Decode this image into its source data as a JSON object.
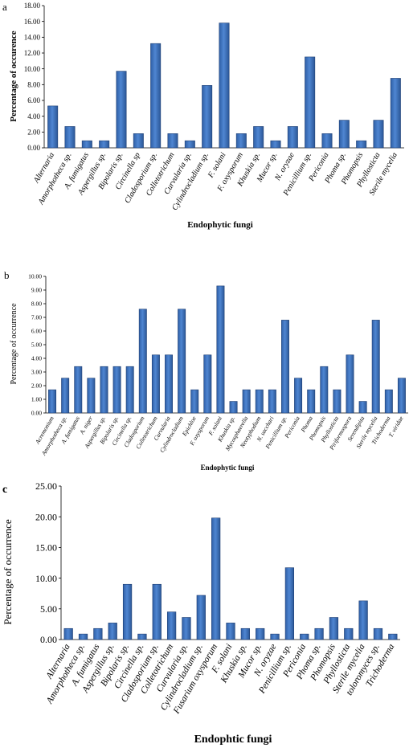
{
  "chart_data": [
    {
      "type": "bar",
      "panel_label": "a",
      "xlabel": "Endophytic fungi",
      "ylabel": "Percentage of occurence",
      "ylim": [
        0,
        18
      ],
      "yticks": [
        "0.00",
        "2.00",
        "4.00",
        "6.00",
        "8.00",
        "10.00",
        "12.00",
        "14.00",
        "16.00",
        "18.00"
      ],
      "categories": [
        "Alternaria",
        "Amorphotheca sp.",
        "A. fumigatus",
        "Aspergillus sp.",
        "Bipolaris sp.",
        "Circinella sp",
        "Cladosporium sp.",
        "Colletotrichum",
        "Curvularia sp.",
        "Cylindrocladium sp.",
        "F. solani",
        "F. oxysporum",
        "Khuskia sp.",
        "Mucor sp.",
        "N. oryzae",
        "Penicillium sp.",
        "Periconia",
        "Phoma sp.",
        "Phomopsis",
        "Phyllosticta",
        "Sterile mycelia"
      ],
      "values": [
        5.3,
        2.7,
        0.9,
        0.9,
        9.7,
        1.8,
        13.2,
        1.8,
        0.9,
        7.9,
        15.8,
        1.8,
        2.7,
        0.9,
        2.7,
        11.5,
        1.8,
        3.5,
        0.9,
        3.5,
        8.8
      ]
    },
    {
      "type": "bar",
      "panel_label": "b",
      "xlabel": "Endophytic fungi",
      "ylabel": "Percentage of occurrence",
      "ylim": [
        0,
        10
      ],
      "yticks": [
        "0.00",
        "1.00",
        "2.00",
        "3.00",
        "4.00",
        "5.00",
        "6.00",
        "7.00",
        "8.00",
        "9.00",
        "10.00"
      ],
      "categories": [
        "Acremonium",
        "Amorphotheca sp.",
        "A. fumigatus",
        "A. niger",
        "Aspergillus sp.",
        "Bipolaris sp.",
        "Circinella sp.",
        "Cladosporium",
        "Colletotrichum",
        "Curvularia",
        "Cylindrocladium",
        "Epichloe",
        "F. oxysporum",
        "F. solani",
        "Khuskia sp.",
        "Mycosphaerella",
        "Neotyphodium",
        "N. sacchari",
        "Penicillium sp.",
        "Periconia",
        "Phoma",
        "Phomopsis",
        "Phyllosticta",
        "Piriformospora",
        "Serendipita",
        "Sterile mycelia",
        "Trichoderma",
        "T. viridae"
      ],
      "values": [
        1.7,
        2.55,
        3.4,
        2.55,
        3.4,
        3.4,
        3.4,
        7.6,
        4.25,
        4.25,
        7.6,
        1.7,
        4.25,
        9.3,
        0.85,
        1.7,
        1.7,
        1.7,
        6.8,
        2.55,
        1.7,
        3.4,
        1.7,
        4.25,
        0.85,
        6.8,
        1.7,
        2.55
      ]
    },
    {
      "type": "bar",
      "panel_label": "c",
      "xlabel": "Endophtic fungi",
      "ylabel": "Percentage of occurrence",
      "ylim": [
        0,
        25
      ],
      "yticks": [
        "0.00",
        "5.00",
        "10.00",
        "15.00",
        "20.00",
        "25.00"
      ],
      "categories": [
        "Alternaria",
        "Amorphotheca sp.",
        "A. fumigatus",
        "Aspergillus sp.",
        "Bipolaris sp.",
        "Circinella sp.",
        "Cladosporium sp.",
        "Colletotrichum",
        "Curvularia sp.",
        "Cylindrocladium sp.",
        "Fusarium oxysporum",
        "F. solani",
        "Khuskia sp.",
        "Mucor sp.",
        "N. oryzae",
        "Penicillium sp.",
        "Periconia",
        "Phoma sp.",
        "Phomopsis",
        "Phyllosticta",
        "Sterile mycelia",
        "toloromyces sp.",
        "Trichoderma"
      ],
      "values": [
        1.8,
        0.9,
        1.8,
        2.7,
        9.0,
        0.9,
        9.0,
        4.5,
        3.6,
        7.2,
        19.8,
        2.7,
        1.8,
        1.8,
        0.9,
        11.7,
        0.9,
        1.8,
        3.6,
        1.8,
        6.3,
        1.8,
        0.9
      ]
    }
  ]
}
